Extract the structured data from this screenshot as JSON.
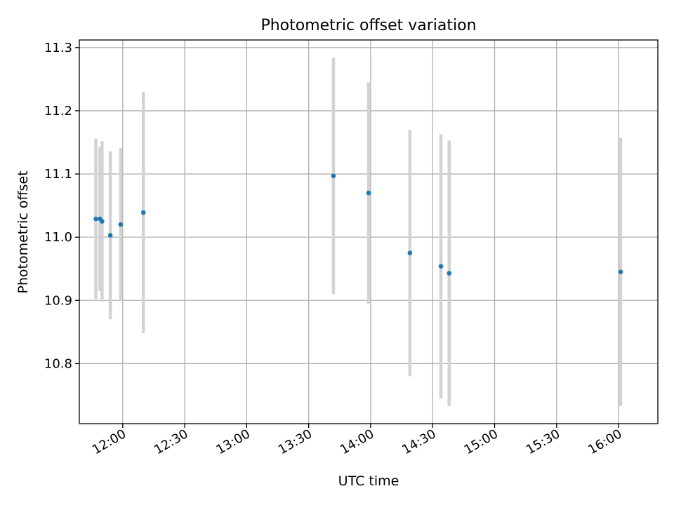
{
  "chart_data": {
    "type": "scatter",
    "title": "Photometric offset variation",
    "xlabel": "UTC time",
    "ylabel": "Photometric offset",
    "grid": true,
    "x_is_time": true,
    "xlim": [
      "11:39",
      "16:19"
    ],
    "ylim": [
      10.705,
      11.312
    ],
    "x_ticks": [
      "12:00",
      "12:30",
      "13:00",
      "13:30",
      "14:00",
      "14:30",
      "15:00",
      "15:30",
      "16:00"
    ],
    "y_ticks": [
      10.8,
      10.9,
      11.0,
      11.1,
      11.2,
      11.3
    ],
    "colors": {
      "point": "#1f77b4",
      "errorbar": "#d3d3d3",
      "grid": "#b0b0b0"
    },
    "series": [
      {
        "points": [
          {
            "x": "11:47",
            "y": 11.029,
            "err": 0.127
          },
          {
            "x": "11:49",
            "y": 11.029,
            "err": 0.114
          },
          {
            "x": "11:50",
            "y": 11.025,
            "err": 0.127
          },
          {
            "x": "11:54",
            "y": 11.003,
            "err": 0.133
          },
          {
            "x": "11:59",
            "y": 11.02,
            "err": 0.121
          },
          {
            "x": "12:10",
            "y": 11.039,
            "err": 0.191
          },
          {
            "x": "13:42",
            "y": 11.097,
            "err": 0.187
          },
          {
            "x": "13:59",
            "y": 11.07,
            "err": 0.175
          },
          {
            "x": "14:19",
            "y": 10.975,
            "err": 0.195
          },
          {
            "x": "14:34",
            "y": 10.954,
            "err": 0.209
          },
          {
            "x": "14:38",
            "y": 10.943,
            "err": 0.21
          },
          {
            "x": "16:01",
            "y": 10.945,
            "err": 0.212
          }
        ]
      }
    ]
  }
}
